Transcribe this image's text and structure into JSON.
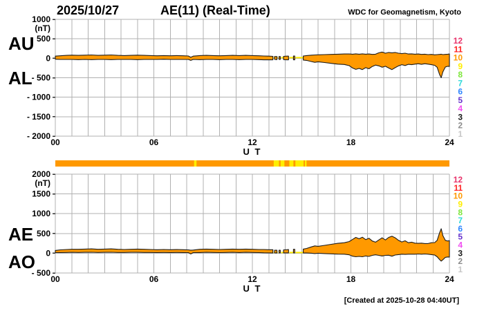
{
  "header": {
    "date": "2025/10/27",
    "title": "AE(11) (Real-Time)",
    "org": "WDC for Geomagnetism, Kyoto"
  },
  "footer": {
    "created_label": "[Created at 2025-10-28 04:40UT]"
  },
  "chart_data": {
    "type": "area",
    "x_axis": "UT hours 0-24, gridline every hour",
    "panels": [
      {
        "name": "AU-AL-panel",
        "left_labels": [
          "AU",
          "AL"
        ],
        "unit": "(nT)",
        "ylim": [
          -2000,
          1000
        ],
        "yticks": [
          {
            "v": 1000,
            "label": "1000"
          },
          {
            "v": 500,
            "label": "500"
          },
          {
            "v": 0,
            "label": "0"
          },
          {
            "v": -500,
            "label": "- 500"
          },
          {
            "v": -1000,
            "label": "- 1000"
          },
          {
            "v": -1500,
            "label": "- 1500"
          },
          {
            "v": -2000,
            "label": "- 2000"
          }
        ],
        "xticks": [
          {
            "h": 0,
            "label": "00"
          },
          {
            "h": 6,
            "label": "06"
          },
          {
            "h": 12,
            "label": "12"
          },
          {
            "h": 18,
            "label": "18"
          },
          {
            "h": 24,
            "label": "24"
          }
        ],
        "xlabel": "U T",
        "series_names": [
          "AU (upper)",
          "AL (lower)"
        ],
        "points": [
          [
            0,
            55,
            -25
          ],
          [
            0.3,
            65,
            -30
          ],
          [
            0.7,
            75,
            -30
          ],
          [
            1,
            80,
            -30
          ],
          [
            1.4,
            75,
            -35
          ],
          [
            1.8,
            80,
            -30
          ],
          [
            2.2,
            85,
            -35
          ],
          [
            2.6,
            75,
            -30
          ],
          [
            3,
            80,
            -30
          ],
          [
            3.4,
            85,
            -35
          ],
          [
            3.8,
            75,
            -30
          ],
          [
            4.2,
            70,
            -30
          ],
          [
            4.6,
            75,
            -30
          ],
          [
            5,
            80,
            -35
          ],
          [
            5.4,
            75,
            -30
          ],
          [
            5.8,
            70,
            -30
          ],
          [
            6.2,
            65,
            -30
          ],
          [
            6.6,
            70,
            -25
          ],
          [
            7,
            65,
            -30
          ],
          [
            7.4,
            70,
            -30
          ],
          [
            7.8,
            65,
            -30
          ],
          [
            8.1,
            60,
            -30
          ],
          [
            8.25,
            25,
            -55
          ],
          [
            8.4,
            55,
            -30
          ],
          [
            8.8,
            70,
            -35
          ],
          [
            9.2,
            75,
            -30
          ],
          [
            9.6,
            70,
            -30
          ],
          [
            10,
            65,
            -35
          ],
          [
            10.4,
            70,
            -30
          ],
          [
            10.8,
            75,
            -30
          ],
          [
            11.2,
            70,
            -35
          ],
          [
            11.6,
            75,
            -30
          ],
          [
            12,
            70,
            -30
          ],
          [
            12.4,
            65,
            -35
          ],
          [
            12.7,
            60,
            -40
          ],
          [
            13,
            55,
            -40
          ],
          [
            13.25,
            50,
            -40
          ],
          [
            13.3,
            null,
            null
          ],
          [
            13.35,
            45,
            -30
          ],
          [
            13.5,
            45,
            -35
          ],
          [
            13.55,
            null,
            null
          ],
          [
            13.62,
            45,
            -30
          ],
          [
            13.7,
            45,
            -30
          ],
          [
            13.75,
            null,
            null
          ],
          [
            13.9,
            50,
            -35
          ],
          [
            14.1,
            55,
            -40
          ],
          [
            14.2,
            55,
            -40
          ],
          [
            14.25,
            null,
            null
          ],
          [
            14.5,
            60,
            -40
          ],
          [
            14.58,
            60,
            -40
          ],
          [
            14.62,
            null,
            null
          ],
          [
            15.1,
            60,
            -45
          ],
          [
            15.3,
            70,
            -55
          ],
          [
            15.6,
            80,
            -85
          ],
          [
            15.8,
            85,
            -105
          ],
          [
            16,
            90,
            -90
          ],
          [
            16.4,
            95,
            -110
          ],
          [
            16.8,
            100,
            -130
          ],
          [
            17.2,
            105,
            -150
          ],
          [
            17.6,
            110,
            -160
          ],
          [
            17.9,
            110,
            -190
          ],
          [
            18.1,
            105,
            -250
          ],
          [
            18.3,
            115,
            -285
          ],
          [
            18.5,
            105,
            -260
          ],
          [
            18.7,
            115,
            -290
          ],
          [
            18.9,
            105,
            -240
          ],
          [
            19.1,
            110,
            -270
          ],
          [
            19.3,
            100,
            -210
          ],
          [
            19.5,
            105,
            -175
          ],
          [
            19.7,
            140,
            -195
          ],
          [
            19.9,
            160,
            -230
          ],
          [
            20.1,
            130,
            -205
          ],
          [
            20.3,
            150,
            -250
          ],
          [
            20.5,
            140,
            -290
          ],
          [
            20.7,
            150,
            -240
          ],
          [
            20.9,
            130,
            -195
          ],
          [
            21.1,
            120,
            -165
          ],
          [
            21.3,
            130,
            -185
          ],
          [
            21.5,
            110,
            -155
          ],
          [
            21.7,
            115,
            -165
          ],
          [
            21.9,
            105,
            -150
          ],
          [
            22.1,
            110,
            -140
          ],
          [
            22.3,
            100,
            -155
          ],
          [
            22.5,
            105,
            -140
          ],
          [
            22.7,
            95,
            -150
          ],
          [
            22.9,
            100,
            -165
          ],
          [
            23.1,
            90,
            -180
          ],
          [
            23.25,
            95,
            -230
          ],
          [
            23.4,
            100,
            -420
          ],
          [
            23.5,
            105,
            -500
          ],
          [
            23.6,
            95,
            -350
          ],
          [
            23.75,
            100,
            -225
          ],
          [
            23.9,
            105,
            -205
          ],
          [
            24,
            110,
            -210
          ]
        ]
      },
      {
        "name": "AE-AO-panel",
        "left_labels": [
          "AE",
          "AO"
        ],
        "unit": "(nT)",
        "ylim": [
          -500,
          2000
        ],
        "yticks": [
          {
            "v": 2000,
            "label": "2000"
          },
          {
            "v": 1500,
            "label": "1500"
          },
          {
            "v": 1000,
            "label": "1000"
          },
          {
            "v": 500,
            "label": "500"
          },
          {
            "v": 0,
            "label": "0"
          },
          {
            "v": -500,
            "label": "- 500"
          }
        ],
        "xticks": [
          {
            "h": 0,
            "label": "00"
          },
          {
            "h": 6,
            "label": "06"
          },
          {
            "h": 12,
            "label": "12"
          },
          {
            "h": 18,
            "label": "18"
          },
          {
            "h": 24,
            "label": "24"
          }
        ],
        "xlabel": "U T",
        "series_names": [
          "AE (upper)",
          "AO (lower)"
        ],
        "points": [
          [
            0,
            70,
            15
          ],
          [
            0.3,
            85,
            18
          ],
          [
            0.7,
            95,
            20
          ],
          [
            1,
            100,
            22
          ],
          [
            1.4,
            100,
            20
          ],
          [
            1.8,
            105,
            22
          ],
          [
            2.2,
            110,
            25
          ],
          [
            2.6,
            100,
            20
          ],
          [
            3,
            105,
            22
          ],
          [
            3.4,
            110,
            25
          ],
          [
            3.8,
            100,
            20
          ],
          [
            4.2,
            95,
            20
          ],
          [
            4.6,
            100,
            22
          ],
          [
            5,
            105,
            22
          ],
          [
            5.4,
            100,
            20
          ],
          [
            5.8,
            95,
            20
          ],
          [
            6.2,
            90,
            18
          ],
          [
            6.6,
            95,
            20
          ],
          [
            7,
            90,
            18
          ],
          [
            7.4,
            95,
            20
          ],
          [
            7.8,
            90,
            18
          ],
          [
            8.1,
            85,
            15
          ],
          [
            8.25,
            75,
            -20
          ],
          [
            8.4,
            80,
            15
          ],
          [
            8.8,
            100,
            18
          ],
          [
            9.2,
            105,
            22
          ],
          [
            9.6,
            100,
            20
          ],
          [
            10,
            95,
            15
          ],
          [
            10.4,
            100,
            20
          ],
          [
            10.8,
            105,
            22
          ],
          [
            11.2,
            100,
            18
          ],
          [
            11.6,
            105,
            22
          ],
          [
            12,
            100,
            20
          ],
          [
            12.4,
            95,
            15
          ],
          [
            12.7,
            95,
            10
          ],
          [
            13,
            90,
            8
          ],
          [
            13.25,
            90,
            5
          ],
          [
            13.3,
            null,
            null
          ],
          [
            13.35,
            75,
            8
          ],
          [
            13.5,
            75,
            5
          ],
          [
            13.55,
            null,
            null
          ],
          [
            13.62,
            75,
            8
          ],
          [
            13.7,
            75,
            8
          ],
          [
            13.75,
            null,
            null
          ],
          [
            13.9,
            85,
            8
          ],
          [
            14.1,
            90,
            8
          ],
          [
            14.2,
            95,
            8
          ],
          [
            14.25,
            null,
            null
          ],
          [
            14.5,
            100,
            8
          ],
          [
            14.58,
            100,
            8
          ],
          [
            14.62,
            null,
            null
          ],
          [
            15.1,
            105,
            5
          ],
          [
            15.3,
            120,
            5
          ],
          [
            15.6,
            160,
            0
          ],
          [
            15.8,
            185,
            -8
          ],
          [
            16,
            175,
            0
          ],
          [
            16.4,
            200,
            -8
          ],
          [
            16.8,
            225,
            -15
          ],
          [
            17.2,
            250,
            -22
          ],
          [
            17.6,
            265,
            -25
          ],
          [
            17.9,
            295,
            -40
          ],
          [
            18.1,
            350,
            -75
          ],
          [
            18.3,
            400,
            -90
          ],
          [
            18.5,
            365,
            -80
          ],
          [
            18.7,
            405,
            -90
          ],
          [
            18.9,
            345,
            -70
          ],
          [
            19.1,
            380,
            -80
          ],
          [
            19.3,
            310,
            -55
          ],
          [
            19.5,
            280,
            -40
          ],
          [
            19.7,
            335,
            -55
          ],
          [
            19.9,
            390,
            -70
          ],
          [
            20.1,
            335,
            -55
          ],
          [
            20.3,
            400,
            -50
          ],
          [
            20.5,
            430,
            -75
          ],
          [
            20.7,
            390,
            -45
          ],
          [
            20.9,
            325,
            -35
          ],
          [
            21.1,
            285,
            -25
          ],
          [
            21.3,
            315,
            -30
          ],
          [
            21.5,
            265,
            -25
          ],
          [
            21.7,
            280,
            -25
          ],
          [
            21.9,
            255,
            -25
          ],
          [
            22.1,
            250,
            -20
          ],
          [
            22.3,
            255,
            -25
          ],
          [
            22.5,
            245,
            -20
          ],
          [
            22.7,
            245,
            -25
          ],
          [
            22.9,
            265,
            -35
          ],
          [
            23.1,
            270,
            -45
          ],
          [
            23.25,
            325,
            -90
          ],
          [
            23.4,
            520,
            -160
          ],
          [
            23.5,
            620,
            -200
          ],
          [
            23.6,
            445,
            -165
          ],
          [
            23.75,
            325,
            -105
          ],
          [
            23.9,
            310,
            -95
          ],
          [
            24,
            320,
            -100
          ]
        ]
      }
    ],
    "legend": {
      "meaning": "number of contributing stations",
      "values": [
        "12",
        "11",
        "10",
        "9",
        "8",
        "7",
        "6",
        "5",
        "4",
        "3",
        "2",
        "1"
      ],
      "colors": [
        "#e8336b",
        "#ff2222",
        "#ff9900",
        "#ffee00",
        "#7ee63c",
        "#2ed9d9",
        "#2e86ff",
        "#6633cc",
        "#f04ef0",
        "#1a1a1a",
        "#8c8c8c",
        "#c8c8c8"
      ]
    },
    "gap_hours": [
      [
        13.3,
        13.55
      ],
      [
        13.75,
        13.9
      ],
      [
        14.25,
        14.5
      ],
      [
        14.62,
        15.1
      ]
    ],
    "availability_bar": {
      "stripes_hours": [
        [
          8.45,
          8.6
        ],
        [
          13.3,
          13.62
        ],
        [
          13.72,
          13.95
        ],
        [
          14.25,
          14.5
        ],
        [
          14.62,
          15.12
        ],
        [
          15.2,
          15.3
        ]
      ]
    },
    "colors": {
      "band": "#ff9900",
      "band_stroke": "#1a1a1a",
      "grid": "#b0b0b0",
      "tick": "#333333",
      "gap": "#ffee00",
      "bar": "#ff9900"
    }
  }
}
